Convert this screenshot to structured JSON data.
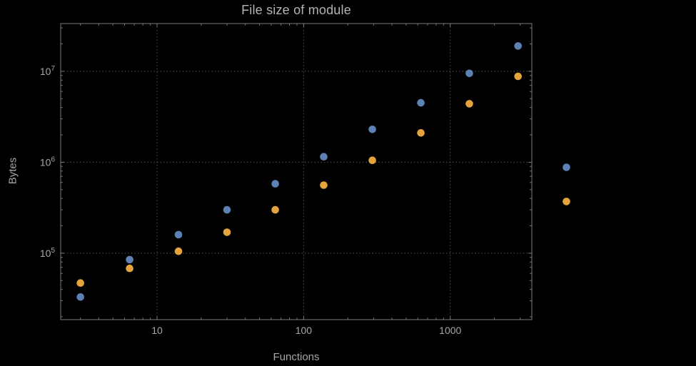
{
  "chart_data": {
    "type": "scatter",
    "title": "File size of module",
    "xlabel": "Functions",
    "ylabel": "Bytes",
    "x_scale": "log",
    "y_scale": "log",
    "x_range": [
      2.2,
      3600
    ],
    "y_range": [
      18600,
      33500000
    ],
    "grid": true,
    "legend": "none",
    "x_major_ticks": [
      10,
      100,
      1000
    ],
    "x_major_tick_labels": [
      "10",
      "100",
      "1000"
    ],
    "y_major_ticks": [
      100000,
      1000000,
      10000000
    ],
    "y_major_tick_labels": [
      {
        "base": "10",
        "exp": "5"
      },
      {
        "base": "10",
        "exp": "6"
      },
      {
        "base": "10",
        "exp": "7"
      }
    ],
    "colors": {
      "series_blue": "#5E81B5",
      "series_orange": "#E5A33C",
      "grid": "#5E5E5E",
      "frame": "#7A7A7A",
      "tick_label": "#A6A6A6",
      "axis_label": "#A6A6A6",
      "title": "#B3B3B3",
      "background": "#000000"
    },
    "series": [
      {
        "name": "series-1",
        "color": "#5E81B5",
        "points": [
          [
            3,
            33000
          ],
          [
            6.5,
            85000
          ],
          [
            14,
            160000
          ],
          [
            30,
            300000
          ],
          [
            64,
            580000
          ],
          [
            137,
            1150000
          ],
          [
            294,
            2300000
          ],
          [
            630,
            4500000
          ],
          [
            1350,
            9500000
          ],
          [
            2900,
            19000000
          ],
          [
            6200,
            880000
          ]
        ]
      },
      {
        "name": "series-2",
        "color": "#E5A33C",
        "points": [
          [
            3,
            47000
          ],
          [
            6.5,
            68000
          ],
          [
            14,
            105000
          ],
          [
            30,
            170000
          ],
          [
            64,
            300000
          ],
          [
            137,
            560000
          ],
          [
            294,
            1050000
          ],
          [
            630,
            2100000
          ],
          [
            1350,
            4400000
          ],
          [
            2900,
            8800000
          ],
          [
            6200,
            370000
          ]
        ]
      }
    ]
  }
}
